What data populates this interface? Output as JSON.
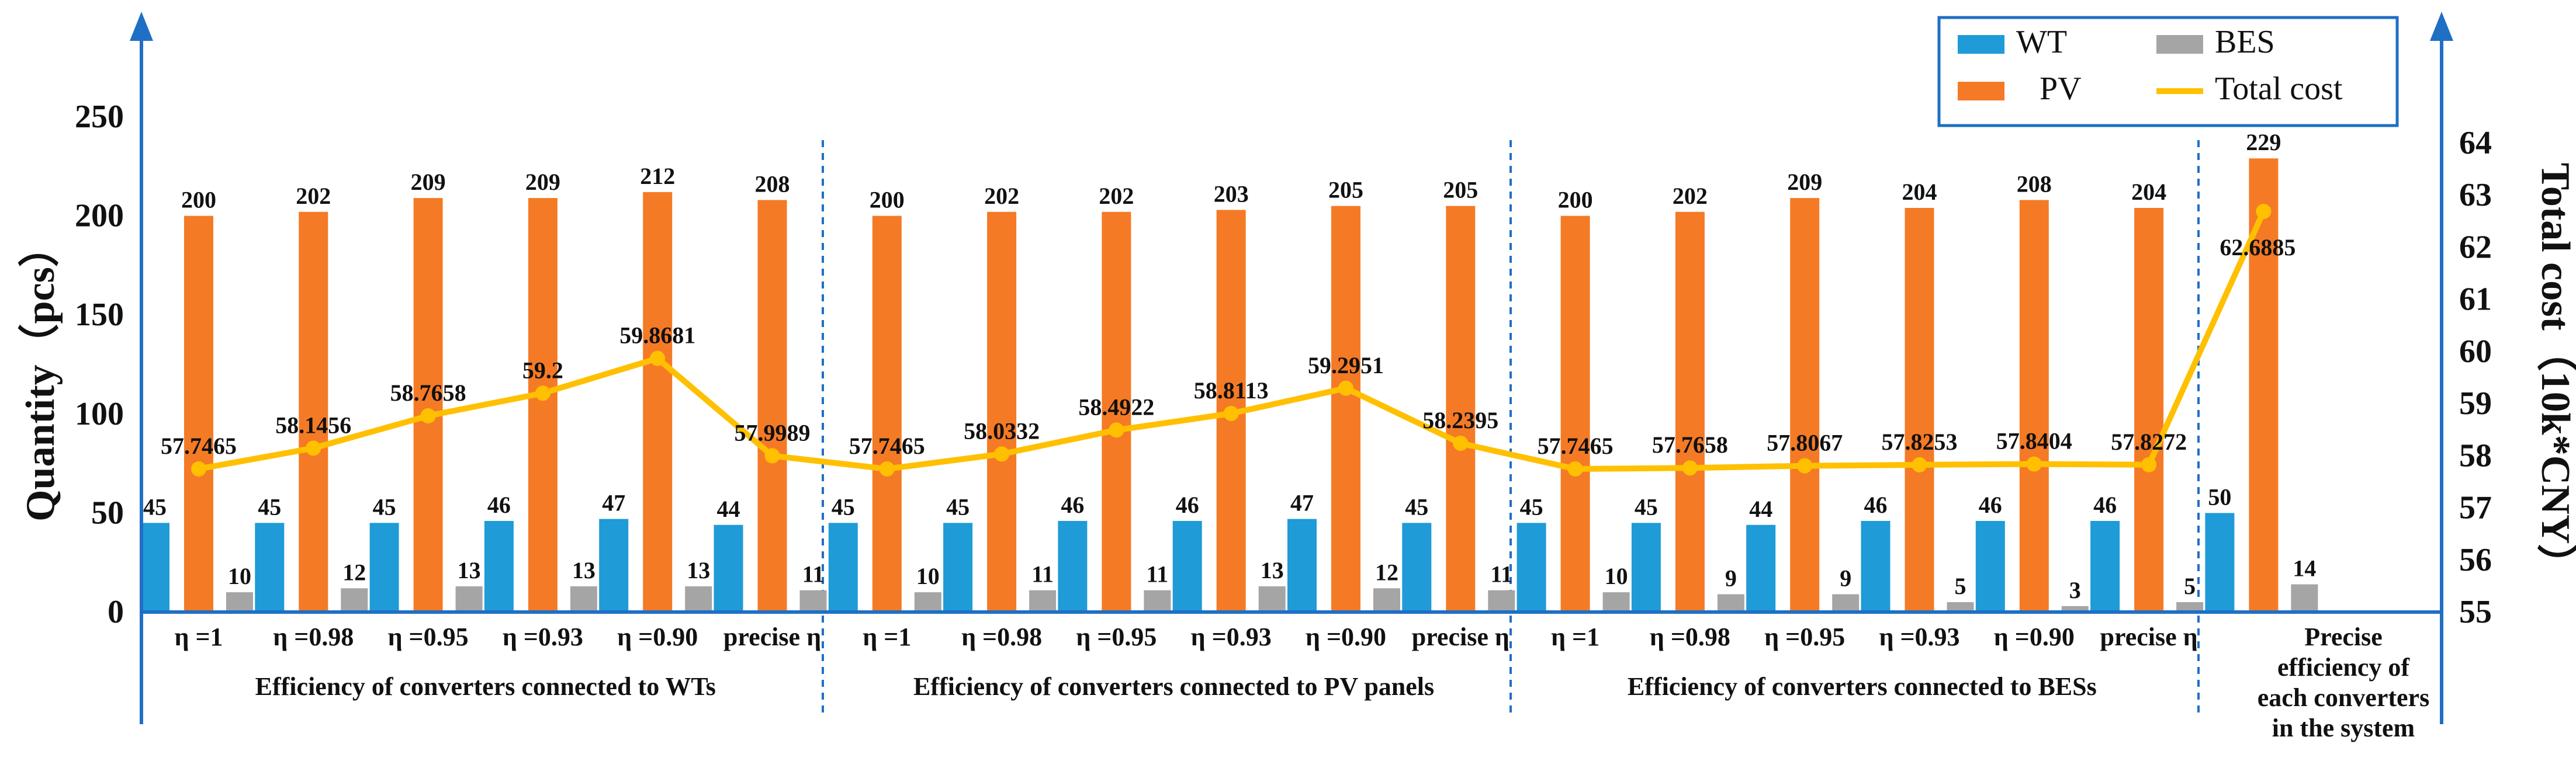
{
  "chart_data": {
    "type": "bar",
    "categories": [
      "η =1",
      "η =0.98",
      "η =0.95",
      "η =0.93",
      "η =0.90",
      "precise η",
      "η =1",
      "η =0.98",
      "η =0.95",
      "η =0.93",
      "η =0.90",
      "precise η",
      "η =1",
      "η =0.98",
      "η =0.95",
      "η =0.93",
      "η =0.90",
      "precise η",
      ""
    ],
    "groups": [
      {
        "label": "Efficiency of converters connected to WTs",
        "start": 0,
        "end": 5
      },
      {
        "label": "Efficiency of converters connected to PV panels",
        "start": 6,
        "end": 11
      },
      {
        "label": "Efficiency of converters connected to BESs",
        "start": 12,
        "end": 17
      },
      {
        "label_lines": [
          "Precise",
          "efficiency of",
          "each converters",
          "in the system"
        ],
        "start": 18,
        "end": 18
      }
    ],
    "series": [
      {
        "name": "WT",
        "type": "bar",
        "axis": "left",
        "color": "#1f9bd7",
        "values": [
          45,
          45,
          45,
          46,
          47,
          44,
          45,
          45,
          46,
          46,
          47,
          45,
          45,
          45,
          44,
          46,
          46,
          46,
          50
        ]
      },
      {
        "name": "PV",
        "type": "bar",
        "axis": "left",
        "color": "#f57a25",
        "values": [
          200,
          202,
          209,
          209,
          212,
          208,
          200,
          202,
          202,
          203,
          205,
          205,
          200,
          202,
          209,
          204,
          208,
          204,
          229
        ]
      },
      {
        "name": "BES",
        "type": "bar",
        "axis": "left",
        "color": "#a5a5a5",
        "values": [
          10,
          12,
          13,
          13,
          13,
          11,
          10,
          11,
          11,
          13,
          12,
          11,
          10,
          9,
          9,
          5,
          3,
          5,
          14
        ]
      },
      {
        "name": "Total cost",
        "type": "line",
        "axis": "right",
        "color": "#ffc000",
        "values": [
          57.7465,
          58.1456,
          58.7658,
          59.2,
          59.8681,
          57.9989,
          57.7465,
          58.0332,
          58.4922,
          58.8113,
          59.2951,
          58.2395,
          57.7465,
          57.7658,
          57.8067,
          57.8253,
          57.8404,
          57.8272,
          62.6885
        ],
        "labels": [
          "57.7465",
          "58.1456",
          "58.7658",
          "59.2",
          "59.8681",
          "57.9989",
          "57.7465",
          "58.0332",
          "58.4922",
          "58.8113",
          "59.2951",
          "58.2395",
          "57.7465",
          "57.7658",
          "57.8067",
          "57.8253",
          "57.8404",
          "57.8272",
          "62.6885"
        ]
      }
    ],
    "ylabel": "Quantity（pcs）",
    "y2label": "Total cost（10k*CNY）",
    "ylim": [
      0,
      250
    ],
    "yticks": [
      "0",
      "50",
      "100",
      "150",
      "200",
      "250"
    ],
    "y2lim": [
      55,
      64
    ],
    "y2ticks": [
      "55",
      "56",
      "57",
      "58",
      "59",
      "60",
      "61",
      "62",
      "63",
      "64"
    ],
    "legend": {
      "position": "top-right",
      "order": [
        "WT",
        "BES",
        "PV",
        "Total cost"
      ]
    },
    "grid": false
  }
}
